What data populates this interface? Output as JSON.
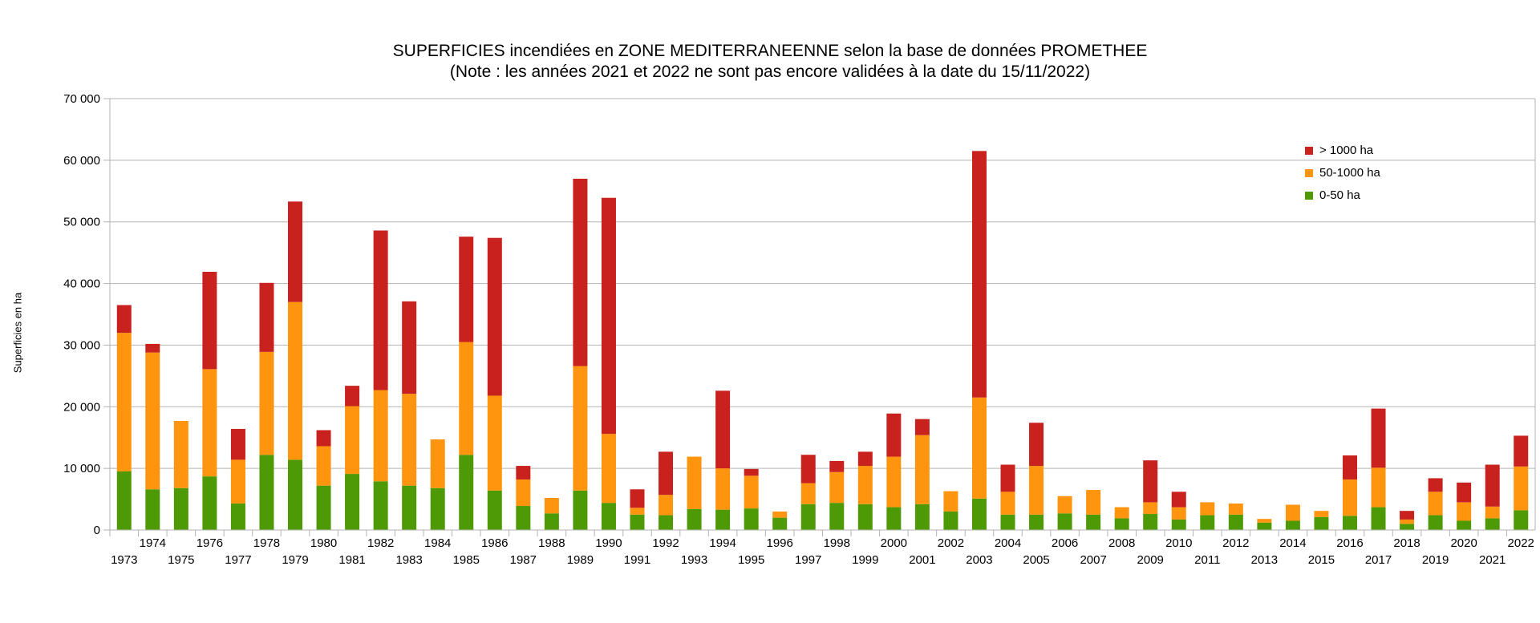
{
  "chart_data": {
    "type": "bar",
    "stacked": true,
    "title": "SUPERFICIES incendiées en ZONE MEDITERRANEENNE selon la base de données PROMETHEE",
    "subtitle": "(Note : les années 2021 et 2022 ne sont pas encore validées à la date du 15/11/2022)",
    "ylabel": "Superficies en ha",
    "xlabel": "",
    "ylim": [
      0,
      70000
    ],
    "yticks": [
      0,
      10000,
      20000,
      30000,
      40000,
      50000,
      60000,
      70000
    ],
    "ytick_labels": [
      "0",
      "10 000",
      "20 000",
      "30 000",
      "40 000",
      "50 000",
      "60 000",
      "70 000"
    ],
    "grid": "horizontal",
    "legend_position": "top-right",
    "legend_order": [
      "> 1000 ha",
      "50-1000 ha",
      "0-50 ha"
    ],
    "categories": [
      "1973",
      "1974",
      "1975",
      "1976",
      "1977",
      "1978",
      "1979",
      "1980",
      "1981",
      "1982",
      "1983",
      "1984",
      "1985",
      "1986",
      "1987",
      "1988",
      "1989",
      "1990",
      "1991",
      "1992",
      "1993",
      "1994",
      "1995",
      "1996",
      "1997",
      "1998",
      "1999",
      "2000",
      "2001",
      "2002",
      "2003",
      "2004",
      "2005",
      "2006",
      "2007",
      "2008",
      "2009",
      "2010",
      "2011",
      "2012",
      "2013",
      "2014",
      "2015",
      "2016",
      "2017",
      "2018",
      "2019",
      "2020",
      "2021",
      "2022"
    ],
    "series": [
      {
        "name": "0-50 ha",
        "color": "#4e9a06",
        "values": [
          9500,
          6600,
          6800,
          8700,
          4300,
          12200,
          11400,
          7200,
          9100,
          7900,
          7200,
          6800,
          12200,
          6400,
          3900,
          2700,
          6400,
          4400,
          2500,
          2400,
          3400,
          3300,
          3500,
          2000,
          4200,
          4400,
          4200,
          3700,
          4200,
          3000,
          5100,
          2500,
          2500,
          2700,
          2500,
          1900,
          2600,
          1700,
          2400,
          2500,
          1200,
          1500,
          2100,
          2300,
          3700,
          1000,
          2400,
          1500,
          1900,
          3200
        ]
      },
      {
        "name": "50-1000 ha",
        "color": "#ff950e",
        "values": [
          22500,
          22200,
          10900,
          17400,
          7100,
          16700,
          25600,
          6400,
          11000,
          14800,
          14900,
          7900,
          18300,
          15400,
          4300,
          2500,
          20200,
          11200,
          1100,
          3300,
          8500,
          6700,
          5300,
          1000,
          3400,
          5000,
          6200,
          8200,
          11200,
          3300,
          16400,
          3700,
          7900,
          2800,
          4000,
          1800,
          1900,
          2000,
          2100,
          1800,
          600,
          2600,
          1000,
          5900,
          6400,
          700,
          3800,
          3000,
          1900,
          7100
        ]
      },
      {
        "name": "> 1000 ha",
        "color": "#c9211e",
        "values": [
          4500,
          1400,
          0,
          15800,
          5000,
          11200,
          16300,
          2600,
          3300,
          25900,
          15000,
          0,
          17100,
          25600,
          2200,
          0,
          30400,
          38300,
          3000,
          7000,
          0,
          12600,
          1100,
          0,
          4600,
          1800,
          2300,
          7000,
          2600,
          0,
          40000,
          4400,
          7000,
          0,
          0,
          0,
          6800,
          2500,
          0,
          0,
          0,
          0,
          0,
          3900,
          9600,
          1400,
          2200,
          3200,
          6800,
          5000
        ]
      }
    ]
  }
}
